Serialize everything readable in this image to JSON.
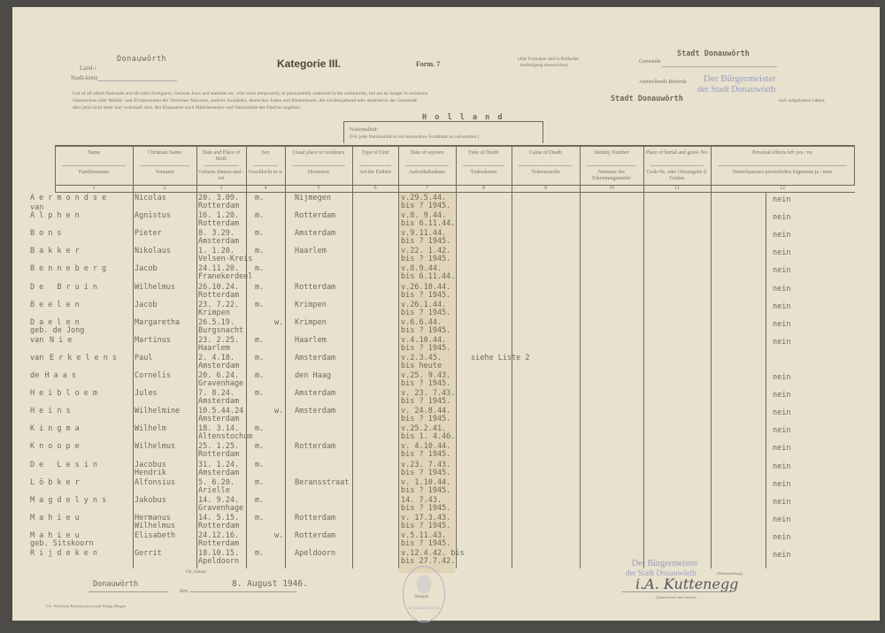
{
  "header": {
    "district_label_top": "Land-/",
    "district_label_bottom": "Stadt-kreis",
    "district_value": "Donauwörth",
    "category": "Kategorie III.",
    "form": "Form. 7",
    "copies_note_1": "(Alle Formulare sind in fünffacher",
    "copies_note_2": "Ausfertigung einzureichen)",
    "municipality_label": "Gemeinde",
    "municipality_value": "Stadt Donauwörth",
    "authority_label": "Amtstellende Behörde",
    "authority_stamp_1": "Der Bürgermeister",
    "authority_stamp_2": "der Stadt Donauwörth",
    "intro_en": "List of all allied Nationals and all other foreigners, German Jews and stateless etc. who were temporarily or permanently stationed in the community, but are no longer in residence.",
    "intro_de_1": "Namensliste aller Militär- und Zivilpersonen der Vereinten Nationen, anderer Ausländer, deutschen Juden und Staatenlosen, die vorübergehend oder dauernd in der Gemeinde",
    "intro_community": "Stadt Donauwörth",
    "intro_de_2": "sich aufgehalten haben,",
    "intro_de_3": "aber jetzt nicht mehr dort wohnhaft sind. Bei Ehepaaren auch Mädchenname und Nationalität der Ehefrau angeben.",
    "nationality_label": "Nationalität:",
    "nationality_value": "H o l l a n d",
    "nationality_note": "(Für jede Nationalität ist ein besonderes Formblatt zu verwenden.)"
  },
  "columns": [
    {
      "num": "1",
      "en": "Name",
      "de": "Familienname"
    },
    {
      "num": "2",
      "en": "Christian Name",
      "de": "Vorname"
    },
    {
      "num": "3",
      "en": "Date and Place of Birth",
      "de": "Geburts-Datum und -ort"
    },
    {
      "num": "4",
      "en": "Sex",
      "de": "Geschlecht m  w"
    },
    {
      "num": "5",
      "en": "Usual place of residence",
      "de": "Heimatort"
    },
    {
      "num": "6",
      "en": "Type of Unit",
      "de": "Art der Einheit"
    },
    {
      "num": "7",
      "en": "Date of sojourn",
      "de": "Aufenthaltsdauer"
    },
    {
      "num": "8",
      "en": "Date of Death",
      "de": "Todesdatum"
    },
    {
      "num": "9",
      "en": "Cause of Death",
      "de": "Todesursache"
    },
    {
      "num": "10",
      "en": "Identity Number",
      "de": "Nummer der Erkennungsmarke"
    },
    {
      "num": "11",
      "en": "Place of burial and grave No.",
      "de": "Grab-Nr. oder Ortsangabe d. Grabes"
    },
    {
      "num": "12",
      "en": "Personal effects left yes / no",
      "de": "Hinterlassenes persönliches Eigentum ja / nein"
    }
  ],
  "rows": [
    {
      "surname": "Aermondse",
      "given": "Nicolas",
      "dob": "20. 3.09.",
      "pob": "Rotterdam",
      "sex": "m.",
      "residence": "Nijmegen",
      "from": "v.29.5.44.",
      "until": "bis ? 1945.",
      "effects": "nein"
    },
    {
      "prefix": "van",
      "surname": "Alphen",
      "given": "Agnistus",
      "dob": "16. 1.20.",
      "pob": "Rotterdam",
      "sex": "m.",
      "residence": "Rotterdam",
      "from": "v.8. 9.44.",
      "until": "bis 6.11.44.",
      "effects": "nein"
    },
    {
      "surname": "Bons",
      "given": "Pieter",
      "dob": "8. 3.29.",
      "pob": "Amsterdam",
      "sex": "m.",
      "residence": "Amsterdam",
      "from": "v.9.11.44.",
      "until": "bis ? 1945.",
      "effects": "nein"
    },
    {
      "surname": "Bakker",
      "given": "Nikolaus",
      "dob": "1. 1.20.",
      "pob": "Velsen-Kreis",
      "sex": "m.",
      "residence": "Haarlem",
      "from": "v.22. 1.42.",
      "until": "bis ? 1945.",
      "effects": "nein"
    },
    {
      "surname": "Benneberg",
      "given": "Jacob",
      "dob": "24.11.20.",
      "pob": "Franekerdeel",
      "sex": "m.",
      "residence": "",
      "from": "v.8.9.44.",
      "until": "bis 6.11.44.",
      "effects": "nein"
    },
    {
      "surname": "De Bruin",
      "given": "Wilhelmus",
      "dob": "26.10.24.",
      "pob": "Rotterdam",
      "sex": "m.",
      "residence": "Rotterdam",
      "from": "v.26.10.44.",
      "until": "bis ? 1945.",
      "effects": "nein"
    },
    {
      "surname": "Beelen",
      "given": "Jacob",
      "dob": "23. 7.22.",
      "pob": "Krimpen",
      "sex": "m.",
      "residence": "Krimpen",
      "from": "v.26.1.44.",
      "until": "bis ? 1945.",
      "effects": "nein"
    },
    {
      "surname": "Daelen",
      "note": "geb. de Jong",
      "given": "Margaretha",
      "dob": "26.5.19.",
      "pob": "Burgsnacht",
      "sex": "w.",
      "residence": "Krimpen",
      "from": "v.6.6.44.",
      "until": "bis ? 1945.",
      "effects": "nein"
    },
    {
      "prefix": "van",
      "surname": "Nie",
      "given": "Martinus",
      "dob": "23. 2.25.",
      "pob": "Haarlem",
      "sex": "m.",
      "residence": "Haarlem",
      "from": "v.4.10.44.",
      "until": "bis ? 1945.",
      "effects": "nein"
    },
    {
      "prefix": "van",
      "surname": "Erkelens",
      "given": "Paul",
      "dob": "2. 4.18.",
      "pob": "Amsterdam",
      "sex": "m.",
      "residence": "Amsterdam",
      "from": "v.2.3.45.",
      "until": "bis heute",
      "remark": "siehe Liste 2",
      "effects": ""
    },
    {
      "prefix": "de",
      "surname": "Haas",
      "given": "Cornelis",
      "dob": "20. 6.24.",
      "pob": "Gravenhage",
      "sex": "m.",
      "residence": "den Haag",
      "from": "v.25. 9.43.",
      "until": "bis ? 1945.",
      "effects": "nein"
    },
    {
      "surname": "Heibloem",
      "given": "Jules",
      "dob": "7. 8.24.",
      "pob": "Amsterdam",
      "sex": "m.",
      "residence": "Amsterdam",
      "from": "v. 23. 7.43.",
      "until": "bis ? 1945.",
      "effects": "nein"
    },
    {
      "surname": "Heins",
      "given": "Wilhelmine",
      "dob": "10.5.44.24",
      "pob": "Amsterdam",
      "sex": "w.",
      "residence": "Amsterdam",
      "from": "v. 24.8.44.",
      "until": "bis ? 1945.",
      "effects": "nein"
    },
    {
      "surname": "Kingma",
      "given": "Wilhelm",
      "dob": "18. 3.14.",
      "pob": "Altenstochum",
      "sex": "m.",
      "residence": "",
      "from": "v.25.2.41.",
      "until": "bis 1. 4.46.",
      "effects": "nein"
    },
    {
      "surname": "Knoope",
      "given": "Wilhelmus",
      "dob": "25. 1.25.",
      "pob": "Rotterdam",
      "sex": "m.",
      "residence": "Rotterdam",
      "from": "v. 4.10.44.",
      "until": "bis ? 1945.",
      "effects": "nein"
    },
    {
      "surname": "De Lesin",
      "given": "Jacobus",
      "given2": "Hendrik",
      "dob": "31. 1.24.",
      "pob": "Amsterdam",
      "sex": "m.",
      "residence": "",
      "from": "v.23. 7.43.",
      "until": "bis ? 1945.",
      "effects": "nein"
    },
    {
      "surname": "Löbker",
      "given": "Alfonsius",
      "dob": "5. 6.20.",
      "pob": "Arielle",
      "sex": "m.",
      "residence": "Beransstraat",
      "from": "v. 1.10.44.",
      "until": "bis ? 1945.",
      "effects": "nein"
    },
    {
      "surname": "Magdelyns",
      "given": "Jakobus",
      "dob": "14. 9.24.",
      "pob": "Gravenhage",
      "sex": "m.",
      "residence": "",
      "from": "14. 7.43.",
      "until": "bis ? 1945.",
      "effects": "nein"
    },
    {
      "surname": "Mahieu",
      "given": "Hermanus",
      "given2": "Wilhelmus",
      "dob": "14. 5.15.",
      "pob": "Rotterdam",
      "sex": "m.",
      "residence": "Rotterdam",
      "from": "v. 17.3.43.",
      "until": "bis ? 1945.",
      "effects": "nein"
    },
    {
      "surname": "Mahieu",
      "note": "geb. Sitskoorn",
      "given": "Elisabeth",
      "dob": "24.12.16.",
      "pob": "Rotterdam",
      "sex": "w.",
      "residence": "Rotterdam",
      "from": "v.5.11.43.",
      "until": "bis ? 1945.",
      "effects": "nein"
    },
    {
      "surname": "Rijdeken",
      "given": "Gerrit",
      "dob": "18.10.15.",
      "pob": "Apeldoorn",
      "sex": "m.",
      "residence": "Apeldoorn",
      "from": "v.12.4.42. bis",
      "until": "bis 27.7.42.",
      "effects": "nein"
    }
  ],
  "footer": {
    "place_label": "Ort, Datum",
    "place_value": "Donauwörth",
    "date_label": "den",
    "date_value": "8. August 1946.",
    "seal_label": "Stempel",
    "seal_text": "Donauwörth",
    "official_stamp_1": "Der Bürgermeister",
    "official_stamp_2": "der Stadt Donauwörth",
    "position_label": "(Dienststellung)",
    "signature": "i.A. Kuttenegg",
    "signature_label": "(Unterschrift des Leiters)",
    "printer": "J.G. Weiß'sche Buchdruckerei und Verlag, Bürgen"
  }
}
